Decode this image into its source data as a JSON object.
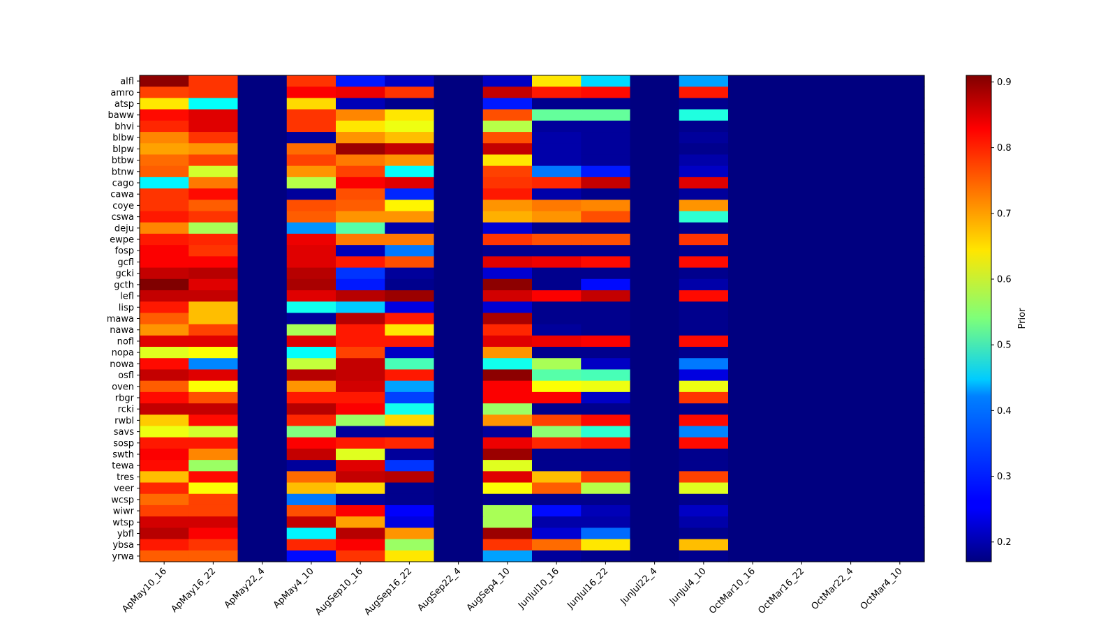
{
  "chart_data": {
    "type": "heatmap",
    "title": "",
    "xlabel": "",
    "ylabel": "",
    "colormap": "jet",
    "colorbar": {
      "label": "Prior",
      "min": 0.17,
      "max": 0.91,
      "ticks": [
        "0.2",
        "0.3",
        "0.4",
        "0.5",
        "0.6",
        "0.7",
        "0.8",
        "0.9"
      ]
    },
    "x_categories": [
      "ApMay10_16",
      "ApMay16_22",
      "ApMay22_4",
      "ApMay4_10",
      "AugSep10_16",
      "AugSep16_22",
      "AugSep22_4",
      "AugSep4_10",
      "JunJul10_16",
      "JunJul16_22",
      "JunJul22_4",
      "JunJul4_10",
      "OctMar10_16",
      "OctMar16_22",
      "OctMar22_4",
      "OctMar4_10"
    ],
    "y_categories": [
      "alfl",
      "amro",
      "atsp",
      "baww",
      "bhvi",
      "blbw",
      "blpw",
      "btbw",
      "btnw",
      "cago",
      "cawa",
      "coye",
      "cswa",
      "deju",
      "ewpe",
      "fosp",
      "gcfl",
      "gcki",
      "gcth",
      "lefl",
      "lisp",
      "mawa",
      "nawa",
      "nofl",
      "nopa",
      "nowa",
      "osfl",
      "oven",
      "rbgr",
      "rcki",
      "rwbl",
      "savs",
      "sosp",
      "swth",
      "tewa",
      "tres",
      "veer",
      "wcsp",
      "wiwr",
      "wtsp",
      "ybfl",
      "ybsa",
      "yrwa"
    ],
    "values": [
      [
        0.9,
        0.78,
        0.17,
        0.78,
        0.28,
        0.22,
        0.17,
        0.22,
        0.65,
        0.42,
        0.17,
        0.38,
        0.17,
        0.17,
        0.17,
        0.17
      ],
      [
        0.77,
        0.78,
        0.17,
        0.82,
        0.83,
        0.78,
        0.17,
        0.86,
        0.8,
        0.81,
        0.17,
        0.8,
        0.17,
        0.17,
        0.17,
        0.17
      ],
      [
        0.65,
        0.45,
        0.17,
        0.66,
        0.21,
        0.18,
        0.17,
        0.28,
        0.18,
        0.18,
        0.17,
        0.18,
        0.17,
        0.17,
        0.17,
        0.17
      ],
      [
        0.81,
        0.84,
        0.17,
        0.78,
        0.72,
        0.65,
        0.17,
        0.76,
        0.52,
        0.52,
        0.17,
        0.47,
        0.17,
        0.17,
        0.17,
        0.17
      ],
      [
        0.79,
        0.84,
        0.17,
        0.78,
        0.65,
        0.62,
        0.17,
        0.58,
        0.19,
        0.19,
        0.17,
        0.18,
        0.17,
        0.17,
        0.17,
        0.17
      ],
      [
        0.72,
        0.78,
        0.17,
        0.19,
        0.71,
        0.68,
        0.17,
        0.76,
        0.2,
        0.19,
        0.17,
        0.19,
        0.17,
        0.17,
        0.17,
        0.17
      ],
      [
        0.7,
        0.71,
        0.17,
        0.74,
        0.89,
        0.86,
        0.17,
        0.86,
        0.2,
        0.19,
        0.17,
        0.18,
        0.17,
        0.17,
        0.17,
        0.17
      ],
      [
        0.74,
        0.77,
        0.17,
        0.77,
        0.73,
        0.71,
        0.17,
        0.65,
        0.2,
        0.19,
        0.17,
        0.2,
        0.17,
        0.17,
        0.17,
        0.17
      ],
      [
        0.75,
        0.6,
        0.17,
        0.71,
        0.77,
        0.45,
        0.17,
        0.77,
        0.35,
        0.28,
        0.17,
        0.22,
        0.17,
        0.17,
        0.17,
        0.17
      ],
      [
        0.44,
        0.73,
        0.17,
        0.58,
        0.82,
        0.84,
        0.17,
        0.78,
        0.79,
        0.86,
        0.17,
        0.84,
        0.17,
        0.17,
        0.17,
        0.17
      ],
      [
        0.78,
        0.81,
        0.17,
        0.19,
        0.76,
        0.29,
        0.17,
        0.8,
        0.2,
        0.18,
        0.17,
        0.19,
        0.17,
        0.17,
        0.17,
        0.17
      ],
      [
        0.78,
        0.75,
        0.17,
        0.76,
        0.75,
        0.64,
        0.17,
        0.71,
        0.73,
        0.72,
        0.17,
        0.71,
        0.17,
        0.17,
        0.17,
        0.17
      ],
      [
        0.8,
        0.78,
        0.17,
        0.75,
        0.71,
        0.71,
        0.17,
        0.69,
        0.71,
        0.76,
        0.17,
        0.48,
        0.17,
        0.17,
        0.17,
        0.17
      ],
      [
        0.72,
        0.57,
        0.17,
        0.37,
        0.51,
        0.2,
        0.17,
        0.23,
        0.18,
        0.18,
        0.17,
        0.18,
        0.17,
        0.17,
        0.17,
        0.17
      ],
      [
        0.8,
        0.79,
        0.17,
        0.83,
        0.73,
        0.73,
        0.17,
        0.78,
        0.76,
        0.76,
        0.17,
        0.78,
        0.17,
        0.17,
        0.17,
        0.17
      ],
      [
        0.82,
        0.78,
        0.17,
        0.84,
        0.21,
        0.35,
        0.17,
        0.18,
        0.18,
        0.18,
        0.17,
        0.18,
        0.17,
        0.17,
        0.17,
        0.17
      ],
      [
        0.82,
        0.82,
        0.17,
        0.84,
        0.8,
        0.76,
        0.17,
        0.84,
        0.83,
        0.81,
        0.17,
        0.81,
        0.17,
        0.17,
        0.17,
        0.17
      ],
      [
        0.86,
        0.87,
        0.17,
        0.87,
        0.3,
        0.19,
        0.17,
        0.23,
        0.18,
        0.18,
        0.17,
        0.18,
        0.17,
        0.17,
        0.17,
        0.17
      ],
      [
        0.91,
        0.84,
        0.17,
        0.88,
        0.28,
        0.18,
        0.17,
        0.9,
        0.18,
        0.27,
        0.17,
        0.2,
        0.17,
        0.17,
        0.17,
        0.17
      ],
      [
        0.86,
        0.86,
        0.17,
        0.84,
        0.87,
        0.89,
        0.17,
        0.85,
        0.82,
        0.86,
        0.17,
        0.81,
        0.17,
        0.17,
        0.17,
        0.17
      ],
      [
        0.8,
        0.68,
        0.17,
        0.46,
        0.41,
        0.24,
        0.17,
        0.23,
        0.18,
        0.18,
        0.17,
        0.18,
        0.17,
        0.17,
        0.17,
        0.17
      ],
      [
        0.75,
        0.68,
        0.17,
        0.19,
        0.87,
        0.8,
        0.17,
        0.88,
        0.18,
        0.18,
        0.17,
        0.18,
        0.17,
        0.17,
        0.17,
        0.17
      ],
      [
        0.71,
        0.77,
        0.17,
        0.57,
        0.8,
        0.65,
        0.17,
        0.79,
        0.19,
        0.18,
        0.17,
        0.18,
        0.17,
        0.17,
        0.17,
        0.17
      ],
      [
        0.84,
        0.84,
        0.17,
        0.84,
        0.8,
        0.8,
        0.17,
        0.84,
        0.83,
        0.82,
        0.17,
        0.81,
        0.17,
        0.17,
        0.17,
        0.17
      ],
      [
        0.61,
        0.63,
        0.17,
        0.45,
        0.77,
        0.22,
        0.17,
        0.71,
        0.18,
        0.18,
        0.17,
        0.18,
        0.17,
        0.17,
        0.17,
        0.17
      ],
      [
        0.81,
        0.36,
        0.17,
        0.59,
        0.86,
        0.5,
        0.17,
        0.46,
        0.57,
        0.22,
        0.17,
        0.35,
        0.17,
        0.17,
        0.17,
        0.17
      ],
      [
        0.86,
        0.84,
        0.17,
        0.87,
        0.86,
        0.8,
        0.17,
        0.9,
        0.51,
        0.5,
        0.17,
        0.24,
        0.17,
        0.17,
        0.17,
        0.17
      ],
      [
        0.75,
        0.63,
        0.17,
        0.71,
        0.85,
        0.38,
        0.17,
        0.82,
        0.63,
        0.62,
        0.17,
        0.62,
        0.17,
        0.17,
        0.17,
        0.17
      ],
      [
        0.81,
        0.76,
        0.17,
        0.8,
        0.8,
        0.31,
        0.17,
        0.82,
        0.82,
        0.22,
        0.17,
        0.78,
        0.17,
        0.17,
        0.17,
        0.17
      ],
      [
        0.86,
        0.86,
        0.17,
        0.87,
        0.82,
        0.46,
        0.17,
        0.56,
        0.18,
        0.18,
        0.17,
        0.18,
        0.17,
        0.17,
        0.17,
        0.17
      ],
      [
        0.67,
        0.81,
        0.17,
        0.79,
        0.56,
        0.66,
        0.17,
        0.71,
        0.77,
        0.81,
        0.17,
        0.81,
        0.17,
        0.17,
        0.17,
        0.17
      ],
      [
        0.62,
        0.6,
        0.17,
        0.54,
        0.19,
        0.19,
        0.17,
        0.19,
        0.55,
        0.48,
        0.17,
        0.36,
        0.17,
        0.17,
        0.17,
        0.17
      ],
      [
        0.8,
        0.8,
        0.17,
        0.82,
        0.8,
        0.79,
        0.17,
        0.83,
        0.79,
        0.8,
        0.17,
        0.81,
        0.17,
        0.17,
        0.17,
        0.17
      ],
      [
        0.82,
        0.72,
        0.17,
        0.86,
        0.61,
        0.19,
        0.17,
        0.89,
        0.18,
        0.18,
        0.17,
        0.18,
        0.17,
        0.17,
        0.17,
        0.17
      ],
      [
        0.81,
        0.56,
        0.17,
        0.19,
        0.84,
        0.3,
        0.17,
        0.61,
        0.18,
        0.18,
        0.17,
        0.18,
        0.17,
        0.17,
        0.17,
        0.17
      ],
      [
        0.68,
        0.81,
        0.17,
        0.74,
        0.86,
        0.87,
        0.17,
        0.84,
        0.68,
        0.77,
        0.17,
        0.77,
        0.17,
        0.17,
        0.17,
        0.17
      ],
      [
        0.79,
        0.63,
        0.17,
        0.68,
        0.66,
        0.18,
        0.17,
        0.63,
        0.75,
        0.58,
        0.17,
        0.61,
        0.17,
        0.17,
        0.17,
        0.17
      ],
      [
        0.74,
        0.77,
        0.17,
        0.35,
        0.19,
        0.18,
        0.17,
        0.18,
        0.18,
        0.18,
        0.17,
        0.18,
        0.17,
        0.17,
        0.17,
        0.17
      ],
      [
        0.77,
        0.77,
        0.17,
        0.76,
        0.82,
        0.26,
        0.17,
        0.57,
        0.27,
        0.21,
        0.17,
        0.22,
        0.17,
        0.17,
        0.17,
        0.17
      ],
      [
        0.85,
        0.85,
        0.17,
        0.86,
        0.7,
        0.24,
        0.17,
        0.57,
        0.2,
        0.2,
        0.17,
        0.2,
        0.17,
        0.17,
        0.17,
        0.17
      ],
      [
        0.87,
        0.82,
        0.17,
        0.44,
        0.87,
        0.71,
        0.17,
        0.89,
        0.23,
        0.34,
        0.17,
        0.18,
        0.17,
        0.17,
        0.17,
        0.17
      ],
      [
        0.8,
        0.78,
        0.17,
        0.79,
        0.82,
        0.56,
        0.17,
        0.78,
        0.74,
        0.65,
        0.17,
        0.68,
        0.17,
        0.17,
        0.17,
        0.17
      ],
      [
        0.75,
        0.75,
        0.17,
        0.27,
        0.78,
        0.65,
        0.17,
        0.38,
        0.19,
        0.18,
        0.17,
        0.18,
        0.17,
        0.17,
        0.17,
        0.17
      ]
    ]
  }
}
